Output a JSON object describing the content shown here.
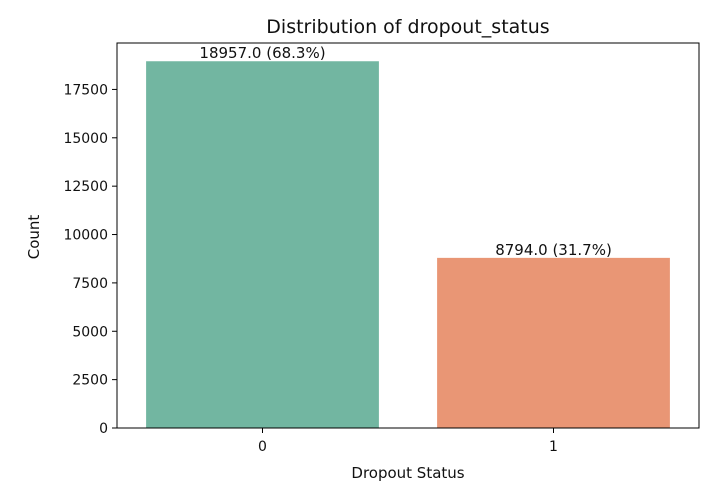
{
  "chart_data": {
    "type": "bar",
    "title": "Distribution of dropout_status",
    "xlabel": "Dropout Status",
    "ylabel": "Count",
    "categories": [
      "0",
      "1"
    ],
    "values": [
      18957,
      8794
    ],
    "data_labels": [
      "18957.0 (68.3%)",
      "8794.0 (31.7%)"
    ],
    "colors": [
      "#72b6a1",
      "#e99675"
    ],
    "ylim": [
      0,
      19900
    ],
    "yticks": [
      0,
      2500,
      5000,
      7500,
      10000,
      12500,
      15000,
      17500
    ],
    "grid": false,
    "legend": "none"
  }
}
